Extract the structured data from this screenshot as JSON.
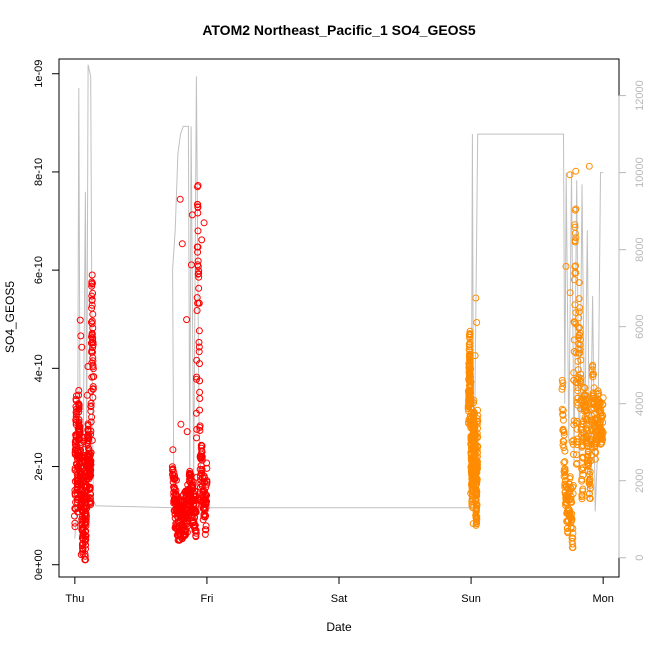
{
  "chart_data": {
    "type": "scatter",
    "title": "ATOM2 Northeast_Pacific_1 SO4_GEOS5",
    "xlabel": "Date",
    "ylabel": "SO4_GEOS5",
    "x_ticks": [
      {
        "t": 0,
        "label": "Thu"
      },
      {
        "t": 1,
        "label": "Fri"
      },
      {
        "t": 2,
        "label": "Sat"
      },
      {
        "t": 3,
        "label": "Sun"
      },
      {
        "t": 4,
        "label": "Mon"
      }
    ],
    "xlim": [
      -0.12,
      4.12
    ],
    "ylim": [
      -2.5e-11,
      1.03e-09
    ],
    "y_ticks": [
      {
        "v": 0,
        "label": "0e+00"
      },
      {
        "v": 2e-10,
        "label": "2e-10"
      },
      {
        "v": 4e-10,
        "label": "4e-10"
      },
      {
        "v": 6e-10,
        "label": "6e-10"
      },
      {
        "v": 8e-10,
        "label": "8e-10"
      },
      {
        "v": 1e-09,
        "label": "1e-09"
      }
    ],
    "y2lim": [
      -500,
      12950
    ],
    "y2_ticks": [
      {
        "v": 0,
        "label": "0"
      },
      {
        "v": 2000,
        "label": "2000"
      },
      {
        "v": 4000,
        "label": "4000"
      },
      {
        "v": 6000,
        "label": "6000"
      },
      {
        "v": 8000,
        "label": "8000"
      },
      {
        "v": 10000,
        "label": "10000"
      },
      {
        "v": 12000,
        "label": "12000"
      }
    ],
    "colors": {
      "flight1": "#ff0000",
      "flight2": "#ff8c00",
      "altitude": "#c0c0c0",
      "axis": "#000000",
      "right_axis": "#b8b8b8"
    },
    "series": [
      {
        "color": "flight1",
        "segments": [
          {
            "x0": 0.0,
            "x1": 0.14,
            "lo": 1e-11,
            "hi": 5.9e-10,
            "keys": [
              [
                0.0,
                1.0
              ],
              [
                0.01,
                3.3
              ],
              [
                0.02,
                1.2
              ],
              [
                0.03,
                3.2
              ],
              [
                0.04,
                2.3
              ],
              [
                0.05,
                1.5
              ],
              [
                0.06,
                0.5
              ],
              [
                0.07,
                2.2
              ],
              [
                0.08,
                0.2
              ],
              [
                0.09,
                1.8
              ],
              [
                0.1,
                2.5
              ],
              [
                0.11,
                2.0
              ],
              [
                0.12,
                1.6
              ],
              [
                0.13,
                5.8
              ],
              [
                0.14,
                3.5
              ]
            ]
          },
          {
            "x0": 0.74,
            "x1": 1.0,
            "lo": 5e-11,
            "hi": 8e-10,
            "keys": [
              [
                0.74,
                2.0
              ],
              [
                0.76,
                1.2
              ],
              [
                0.79,
                0.8
              ],
              [
                0.82,
                1.0
              ],
              [
                0.85,
                1.1
              ],
              [
                0.87,
                1.5
              ],
              [
                0.9,
                1.2
              ],
              [
                0.92,
                1.0
              ],
              [
                0.93,
                7.8
              ],
              [
                0.94,
                5.0
              ],
              [
                0.95,
                1.5
              ],
              [
                0.96,
                2.5
              ],
              [
                0.97,
                1.2
              ],
              [
                0.98,
                1.5
              ],
              [
                0.99,
                1.0
              ],
              [
                1.0,
                1.8
              ]
            ]
          }
        ]
      },
      {
        "color": "flight2",
        "segments": [
          {
            "x0": 2.98,
            "x1": 3.05,
            "lo": 8e-11,
            "hi": 5.5e-10,
            "keys": [
              [
                2.98,
                3.1
              ],
              [
                2.99,
                4.5
              ],
              [
                3.0,
                2.5
              ],
              [
                3.01,
                1.5
              ],
              [
                3.02,
                3.0
              ],
              [
                3.03,
                2.2
              ],
              [
                3.04,
                1.0
              ],
              [
                3.05,
                2.8
              ]
            ]
          },
          {
            "x0": 3.69,
            "x1": 4.0,
            "lo": 3.5e-11,
            "hi": 1.01e-09,
            "keys": [
              [
                3.69,
                3.5
              ],
              [
                3.71,
                1.8
              ],
              [
                3.73,
                1.0
              ],
              [
                3.75,
                1.5
              ],
              [
                3.77,
                0.5
              ],
              [
                3.79,
                7.8
              ],
              [
                3.8,
                2.0
              ],
              [
                3.82,
                5.5
              ],
              [
                3.84,
                1.5
              ],
              [
                3.86,
                3.5
              ],
              [
                3.88,
                2.5
              ],
              [
                3.9,
                1.6
              ],
              [
                3.92,
                3.8
              ],
              [
                3.94,
                2.5
              ],
              [
                3.96,
                3.2
              ],
              [
                3.98,
                2.8
              ],
              [
                4.0,
                3.0
              ]
            ]
          }
        ]
      }
    ],
    "altitude_trace_y2": [
      [
        0.0,
        500
      ],
      [
        0.02,
        1500
      ],
      [
        0.03,
        12200
      ],
      [
        0.04,
        3000
      ],
      [
        0.06,
        1500
      ],
      [
        0.08,
        9500
      ],
      [
        0.09,
        3000
      ],
      [
        0.1,
        12800
      ],
      [
        0.12,
        12500
      ],
      [
        0.13,
        5500
      ],
      [
        0.14,
        1500
      ],
      [
        0.16,
        1350
      ],
      [
        0.75,
        1300
      ],
      [
        0.74,
        7500
      ],
      [
        0.76,
        8500
      ],
      [
        0.78,
        10500
      ],
      [
        0.8,
        11000
      ],
      [
        0.82,
        11200
      ],
      [
        0.86,
        11200
      ],
      [
        0.87,
        2000
      ],
      [
        0.88,
        11200
      ],
      [
        0.9,
        2000
      ],
      [
        0.92,
        12500
      ],
      [
        0.94,
        3500
      ],
      [
        0.96,
        1500
      ],
      [
        1.0,
        1300
      ],
      [
        3.0,
        1300
      ],
      [
        3.01,
        11000
      ],
      [
        3.02,
        1000
      ],
      [
        3.05,
        11000
      ],
      [
        3.7,
        11000
      ],
      [
        3.71,
        4000
      ],
      [
        3.72,
        10000
      ],
      [
        3.74,
        3000
      ],
      [
        3.76,
        10000
      ],
      [
        3.78,
        2500
      ],
      [
        3.8,
        9800
      ],
      [
        3.82,
        2000
      ],
      [
        3.84,
        9700
      ],
      [
        3.86,
        3000
      ],
      [
        3.88,
        8500
      ],
      [
        3.9,
        1500
      ],
      [
        3.92,
        6800
      ],
      [
        3.94,
        1200
      ],
      [
        3.96,
        3000
      ],
      [
        3.98,
        10000
      ],
      [
        4.0,
        10000
      ]
    ]
  }
}
